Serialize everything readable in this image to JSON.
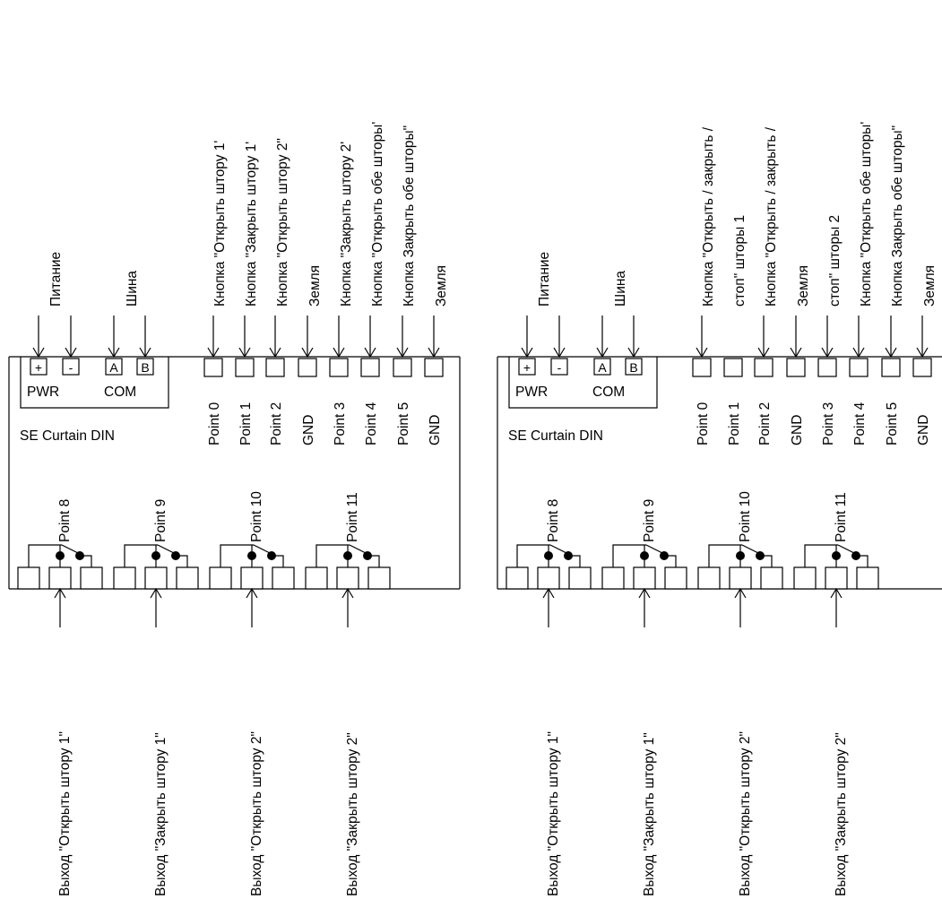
{
  "device_name": "SE Curtain DIN",
  "labels": {
    "pwr": "PWR",
    "com": "COM",
    "plus": "+",
    "minus": "-",
    "a": "A",
    "b": "B"
  },
  "diagrams": [
    {
      "top_labels": [
        {
          "text": "Питание"
        },
        {
          "text": "Шина"
        },
        {
          "text": "Кнопка \"Открыть штору 1'"
        },
        {
          "text": "Кнопка \"Закрыть штору 1'"
        },
        {
          "text": "Кнопка \"Открыть штору 2\""
        },
        {
          "text": "Земля"
        },
        {
          "text": "Кнопка \"Закрыть штору 2'"
        },
        {
          "text": "Кнопка \"Открыть обе шторы'"
        },
        {
          "text": "Кнопка Закрыть обе шторы\""
        },
        {
          "text": "Земля"
        }
      ],
      "pins_top": [
        "Point 0",
        "Point 1",
        "Point 2",
        "GND",
        "Point 3",
        "Point 4",
        "Point 5",
        "GND"
      ],
      "relays": [
        {
          "point": "Point 8",
          "output": "Выход \"Открыть штору 1\""
        },
        {
          "point": "Point 9",
          "output": "Выход \"Закрыть штору 1\""
        },
        {
          "point": "Point 10",
          "output": "Выход \"Открыть штору 2\""
        },
        {
          "point": "Point 11",
          "output": "Выход \"Закрыть штору 2\""
        }
      ]
    },
    {
      "top_labels": [
        {
          "text": "Питание"
        },
        {
          "text": "Шина"
        },
        {
          "text": "Кнопка \"Открыть / закрыть /"
        },
        {
          "text": "стоп\" шторы 1"
        },
        {
          "text": "Кнопка \"Открыть / закрыть /"
        },
        {
          "text": "Земля"
        },
        {
          "text": "стоп\" шторы 2"
        },
        {
          "text": "Кнопка \"Открыть обе шторы'"
        },
        {
          "text": "Кнопка Закрыть обе шторы\""
        },
        {
          "text": "Земля"
        }
      ],
      "pins_top": [
        "Point 0",
        "Point 1",
        "Point 2",
        "GND",
        "Point 3",
        "Point 4",
        "Point 5",
        "GND"
      ],
      "relays": [
        {
          "point": "Point 8",
          "output": "Выход \"Открыть штору 1\""
        },
        {
          "point": "Point 9",
          "output": "Выход \"Закрыть штору 1\""
        },
        {
          "point": "Point 10",
          "output": "Выход \"Открыть штору 2\""
        },
        {
          "point": "Point 11",
          "output": "Выход \"Закрыть штору 2\""
        }
      ]
    }
  ]
}
